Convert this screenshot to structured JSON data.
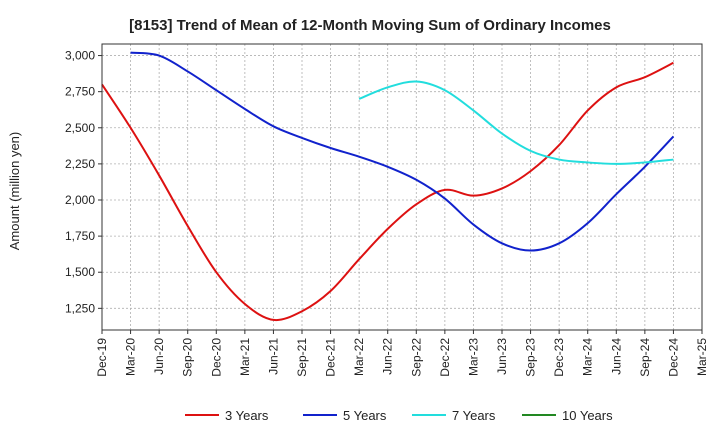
{
  "chart_data": {
    "type": "line",
    "title": "[8153]  Trend of Mean of 12-Month Moving Sum of Ordinary Incomes",
    "xlabel": "",
    "ylabel": "Amount (million yen)",
    "ylim": [
      1100,
      3080
    ],
    "yticks": [
      1250,
      1500,
      1750,
      2000,
      2250,
      2500,
      2750,
      3000
    ],
    "ytick_labels": [
      "1,250",
      "1,500",
      "1,750",
      "2,000",
      "2,250",
      "2,500",
      "2,750",
      "3,000"
    ],
    "categories": [
      "Dec-19",
      "Mar-20",
      "Jun-20",
      "Sep-20",
      "Dec-20",
      "Mar-21",
      "Jun-21",
      "Sep-21",
      "Dec-21",
      "Mar-22",
      "Jun-22",
      "Sep-22",
      "Dec-22",
      "Mar-23",
      "Jun-23",
      "Sep-23",
      "Dec-23",
      "Mar-24",
      "Jun-24",
      "Sep-24",
      "Dec-24",
      "Mar-25"
    ],
    "grid": true,
    "legend_position": "bottom",
    "series": [
      {
        "name": "3 Years",
        "color": "#dd1111",
        "values": [
          2800,
          2500,
          2170,
          1820,
          1500,
          1280,
          1170,
          1230,
          1370,
          1590,
          1800,
          1970,
          2070,
          2030,
          2080,
          2200,
          2380,
          2620,
          2780,
          2850,
          2950,
          null
        ]
      },
      {
        "name": "5 Years",
        "color": "#1122cc",
        "values": [
          null,
          3020,
          3000,
          2890,
          2760,
          2630,
          2510,
          2430,
          2360,
          2300,
          2230,
          2140,
          2010,
          1830,
          1700,
          1650,
          1700,
          1840,
          2040,
          2230,
          2440,
          null
        ]
      },
      {
        "name": "7 Years",
        "color": "#22dddd",
        "values": [
          null,
          null,
          null,
          null,
          null,
          null,
          null,
          null,
          null,
          2700,
          2780,
          2820,
          2760,
          2620,
          2460,
          2340,
          2280,
          2260,
          2250,
          2260,
          2280,
          null
        ]
      },
      {
        "name": "10 Years",
        "color": "#228822",
        "values": [
          null,
          null,
          null,
          null,
          null,
          null,
          null,
          null,
          null,
          null,
          null,
          null,
          null,
          null,
          null,
          null,
          null,
          null,
          null,
          null,
          null,
          null
        ]
      }
    ]
  }
}
